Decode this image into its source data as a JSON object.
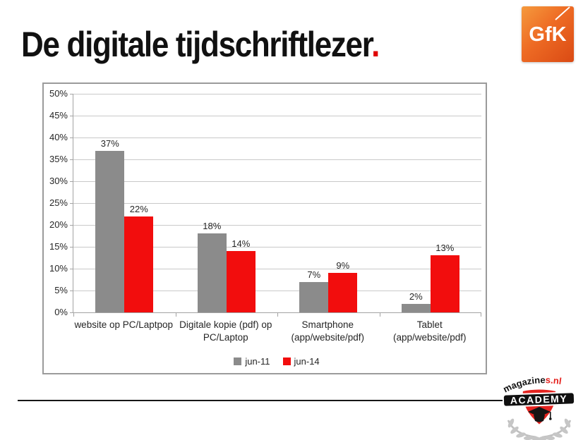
{
  "header": {
    "title": "De digitale tijdschriftlezer",
    "title_period": ".",
    "accent_color": "#e00000",
    "logo_text": "GfK"
  },
  "chart_data": {
    "type": "bar",
    "title": "De digitale tijdschriftlezer.",
    "categories": [
      "website op PC/Laptpop",
      "Digitale kopie (pdf) op PC/Laptop",
      "Smartphone (app/website/pdf)",
      "Tablet (app/website/pdf)"
    ],
    "category_lines": [
      [
        "website op PC/Laptpop"
      ],
      [
        "Digitale kopie (pdf) op",
        "PC/Laptop"
      ],
      [
        "Smartphone",
        "(app/website/pdf)"
      ],
      [
        "Tablet",
        "(app/website/pdf)"
      ]
    ],
    "series": [
      {
        "name": "jun-11",
        "color": "#8b8b8b",
        "values": [
          37,
          18,
          7,
          2
        ]
      },
      {
        "name": "jun-14",
        "color": "#f20d0d",
        "values": [
          22,
          14,
          9,
          13
        ]
      }
    ],
    "value_suffix": "%",
    "ylabel_ticks": [
      "50%",
      "45%",
      "40%",
      "35%",
      "30%",
      "25%",
      "20%",
      "15%",
      "10%",
      "5%",
      "0%"
    ],
    "ylim": [
      0,
      50
    ],
    "ytick_step": 5,
    "grid": true,
    "legend_position": "bottom-center",
    "xlabel": "",
    "ylabel": ""
  },
  "footer": {
    "brand_arc_black": "magazine",
    "brand_arc_red": "s.nl",
    "brand_banner": "ACADEMY",
    "brand_red": "#e52420"
  }
}
